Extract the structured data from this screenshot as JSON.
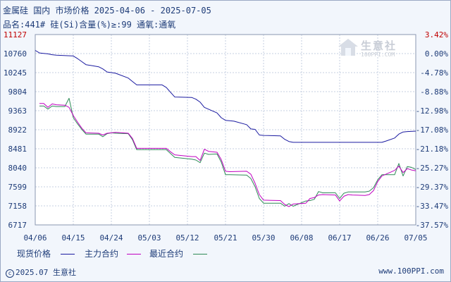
{
  "header": {
    "title": "金属硅 国内 市场价格 2025-04-06 - 2025-07-05",
    "subtitle": "品名:441# 硅(Si)含量(%)≥:99 通氧:通氧"
  },
  "watermark": {
    "brand": "生意社",
    "url": "100PPI.COM"
  },
  "footer": {
    "copyright": "2025.07 生意社",
    "site": "www.100PPI.com"
  },
  "colors": {
    "spot": "#1a1aa0",
    "main": "#c000c0",
    "latest": "#2e8b57",
    "grid": "#c5cfe0",
    "axis_text": "#1e3c78",
    "top_label": "#c00000"
  },
  "chart_data": {
    "type": "line",
    "title": "金属硅 国内 市场价格 2025-04-06 - 2025-07-05",
    "x_ticks": [
      "04/06",
      "04/15",
      "04/24",
      "05/03",
      "05/12",
      "05/21",
      "05/30",
      "06/08",
      "06/17",
      "06/26",
      "07/05"
    ],
    "y_ticks": [
      11127,
      10760,
      10245,
      9804,
      9363,
      8922,
      8481,
      8040,
      7599,
      7158,
      6717
    ],
    "y_right_ticks": [
      "3.42%",
      "0.00%",
      "-4.78%",
      "-8.88%",
      "-12.98%",
      "-17.08%",
      "-21.18%",
      "-25.27%",
      "-29.37%",
      "-33.47%",
      "-37.57%"
    ],
    "ylim": [
      6717,
      11127
    ],
    "x_start": "2025-04-06",
    "x_end": "2025-07-05",
    "grid": true,
    "legend_placement": "bottom",
    "series": [
      {
        "name": "现货价格",
        "color": "#1a1aa0",
        "points": [
          [
            "2025-04-06",
            10760
          ],
          [
            "2025-04-07",
            10700
          ],
          [
            "2025-04-09",
            10680
          ],
          [
            "2025-04-10",
            10660
          ],
          [
            "2025-04-11",
            10650
          ],
          [
            "2025-04-15",
            10630
          ],
          [
            "2025-04-16",
            10570
          ],
          [
            "2025-04-17",
            10500
          ],
          [
            "2025-04-18",
            10430
          ],
          [
            "2025-04-21",
            10380
          ],
          [
            "2025-04-22",
            10330
          ],
          [
            "2025-04-23",
            10260
          ],
          [
            "2025-04-25",
            10230
          ],
          [
            "2025-04-28",
            10120
          ],
          [
            "2025-04-29",
            10040
          ],
          [
            "2025-04-30",
            9960
          ],
          [
            "2025-05-06",
            9960
          ],
          [
            "2025-05-07",
            9900
          ],
          [
            "2025-05-08",
            9790
          ],
          [
            "2025-05-09",
            9680
          ],
          [
            "2025-05-13",
            9670
          ],
          [
            "2025-05-14",
            9630
          ],
          [
            "2025-05-15",
            9560
          ],
          [
            "2025-05-16",
            9440
          ],
          [
            "2025-05-19",
            9310
          ],
          [
            "2025-05-20",
            9200
          ],
          [
            "2025-05-21",
            9140
          ],
          [
            "2025-05-22",
            9130
          ],
          [
            "2025-05-23",
            9120
          ],
          [
            "2025-05-26",
            9040
          ],
          [
            "2025-05-27",
            8940
          ],
          [
            "2025-05-28",
            8930
          ],
          [
            "2025-05-29",
            8800
          ],
          [
            "2025-05-30",
            8790
          ],
          [
            "2025-06-03",
            8780
          ],
          [
            "2025-06-04",
            8700
          ],
          [
            "2025-06-05",
            8650
          ],
          [
            "2025-06-06",
            8630
          ],
          [
            "2025-06-09",
            8630
          ],
          [
            "2025-06-27",
            8630
          ],
          [
            "2025-06-28",
            8660
          ],
          [
            "2025-06-30",
            8730
          ],
          [
            "2025-07-01",
            8820
          ],
          [
            "2025-07-02",
            8870
          ],
          [
            "2025-07-03",
            8880
          ],
          [
            "2025-07-05",
            8890
          ]
        ]
      },
      {
        "name": "主力合约",
        "color": "#c000c0",
        "points": [
          [
            "2025-04-07",
            9530
          ],
          [
            "2025-04-08",
            9530
          ],
          [
            "2025-04-09",
            9440
          ],
          [
            "2025-04-10",
            9520
          ],
          [
            "2025-04-11",
            9500
          ],
          [
            "2025-04-13",
            9490
          ],
          [
            "2025-04-14",
            9440
          ],
          [
            "2025-04-15",
            9250
          ],
          [
            "2025-04-16",
            9100
          ],
          [
            "2025-04-17",
            8960
          ],
          [
            "2025-04-18",
            8850
          ],
          [
            "2025-04-21",
            8840
          ],
          [
            "2025-04-22",
            8800
          ],
          [
            "2025-04-23",
            8840
          ],
          [
            "2025-04-24",
            8850
          ],
          [
            "2025-04-25",
            8860
          ],
          [
            "2025-04-28",
            8840
          ],
          [
            "2025-04-29",
            8720
          ],
          [
            "2025-04-30",
            8490
          ],
          [
            "2025-05-06",
            8490
          ],
          [
            "2025-05-07",
            8490
          ],
          [
            "2025-05-08",
            8410
          ],
          [
            "2025-05-09",
            8340
          ],
          [
            "2025-05-12",
            8310
          ],
          [
            "2025-05-13",
            8300
          ],
          [
            "2025-05-14",
            8300
          ],
          [
            "2025-05-15",
            8210
          ],
          [
            "2025-05-16",
            8470
          ],
          [
            "2025-05-17",
            8420
          ],
          [
            "2025-05-19",
            8400
          ],
          [
            "2025-05-20",
            8230
          ],
          [
            "2025-05-21",
            7960
          ],
          [
            "2025-05-22",
            7950
          ],
          [
            "2025-05-26",
            7960
          ],
          [
            "2025-05-27",
            7890
          ],
          [
            "2025-05-28",
            7680
          ],
          [
            "2025-05-29",
            7420
          ],
          [
            "2025-05-30",
            7290
          ],
          [
            "2025-06-03",
            7280
          ],
          [
            "2025-06-04",
            7190
          ],
          [
            "2025-06-05",
            7140
          ],
          [
            "2025-06-06",
            7200
          ],
          [
            "2025-06-09",
            7220
          ],
          [
            "2025-06-10",
            7330
          ],
          [
            "2025-06-11",
            7350
          ],
          [
            "2025-06-12",
            7410
          ],
          [
            "2025-06-13",
            7420
          ],
          [
            "2025-06-16",
            7410
          ],
          [
            "2025-06-17",
            7270
          ],
          [
            "2025-06-18",
            7380
          ],
          [
            "2025-06-19",
            7420
          ],
          [
            "2025-06-20",
            7410
          ],
          [
            "2025-06-23",
            7400
          ],
          [
            "2025-06-24",
            7420
          ],
          [
            "2025-06-25",
            7510
          ],
          [
            "2025-06-26",
            7720
          ],
          [
            "2025-06-27",
            7850
          ],
          [
            "2025-06-30",
            7980
          ],
          [
            "2025-07-01",
            8080
          ],
          [
            "2025-07-02",
            7930
          ],
          [
            "2025-07-03",
            8020
          ],
          [
            "2025-07-04",
            7990
          ],
          [
            "2025-07-05",
            7970
          ]
        ]
      },
      {
        "name": "最近合约",
        "color": "#2e8b57",
        "points": [
          [
            "2025-04-07",
            9470
          ],
          [
            "2025-04-08",
            9470
          ],
          [
            "2025-04-09",
            9400
          ],
          [
            "2025-04-10",
            9470
          ],
          [
            "2025-04-11",
            9460
          ],
          [
            "2025-04-13",
            9460
          ],
          [
            "2025-04-14",
            9650
          ],
          [
            "2025-04-15",
            9200
          ],
          [
            "2025-04-16",
            9060
          ],
          [
            "2025-04-17",
            8930
          ],
          [
            "2025-04-18",
            8820
          ],
          [
            "2025-04-21",
            8820
          ],
          [
            "2025-04-22",
            8760
          ],
          [
            "2025-04-23",
            8830
          ],
          [
            "2025-04-24",
            8850
          ],
          [
            "2025-04-25",
            8840
          ],
          [
            "2025-04-28",
            8830
          ],
          [
            "2025-04-29",
            8690
          ],
          [
            "2025-04-30",
            8460
          ],
          [
            "2025-05-06",
            8460
          ],
          [
            "2025-05-07",
            8460
          ],
          [
            "2025-05-08",
            8370
          ],
          [
            "2025-05-09",
            8280
          ],
          [
            "2025-05-12",
            8250
          ],
          [
            "2025-05-13",
            8240
          ],
          [
            "2025-05-14",
            8220
          ],
          [
            "2025-05-15",
            8160
          ],
          [
            "2025-05-16",
            8380
          ],
          [
            "2025-05-17",
            8350
          ],
          [
            "2025-05-19",
            8360
          ],
          [
            "2025-05-20",
            8170
          ],
          [
            "2025-05-21",
            7880
          ],
          [
            "2025-05-22",
            7880
          ],
          [
            "2025-05-26",
            7870
          ],
          [
            "2025-05-27",
            7790
          ],
          [
            "2025-05-28",
            7600
          ],
          [
            "2025-05-29",
            7330
          ],
          [
            "2025-05-30",
            7220
          ],
          [
            "2025-06-03",
            7220
          ],
          [
            "2025-06-04",
            7150
          ],
          [
            "2025-06-05",
            7210
          ],
          [
            "2025-06-06",
            7150
          ],
          [
            "2025-06-09",
            7270
          ],
          [
            "2025-06-10",
            7280
          ],
          [
            "2025-06-11",
            7310
          ],
          [
            "2025-06-12",
            7490
          ],
          [
            "2025-06-13",
            7460
          ],
          [
            "2025-06-16",
            7460
          ],
          [
            "2025-06-17",
            7330
          ],
          [
            "2025-06-18",
            7450
          ],
          [
            "2025-06-19",
            7480
          ],
          [
            "2025-06-20",
            7480
          ],
          [
            "2025-06-23",
            7480
          ],
          [
            "2025-06-24",
            7500
          ],
          [
            "2025-06-25",
            7580
          ],
          [
            "2025-06-26",
            7760
          ],
          [
            "2025-06-27",
            7880
          ],
          [
            "2025-06-30",
            7880
          ],
          [
            "2025-07-01",
            8140
          ],
          [
            "2025-07-02",
            7850
          ],
          [
            "2025-07-03",
            8070
          ],
          [
            "2025-07-04",
            8050
          ],
          [
            "2025-07-05",
            8000
          ]
        ]
      }
    ]
  }
}
